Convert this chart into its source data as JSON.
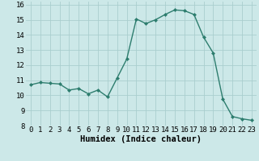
{
  "x": [
    0,
    1,
    2,
    3,
    4,
    5,
    6,
    7,
    8,
    9,
    10,
    11,
    12,
    13,
    14,
    15,
    16,
    17,
    18,
    19,
    20,
    21,
    22,
    23
  ],
  "y": [
    10.7,
    10.85,
    10.8,
    10.75,
    10.35,
    10.45,
    10.1,
    10.35,
    9.9,
    11.15,
    12.4,
    15.05,
    14.75,
    15.0,
    15.35,
    15.65,
    15.6,
    15.35,
    13.85,
    12.8,
    9.75,
    8.6,
    8.45,
    8.35
  ],
  "line_color": "#2d7d6e",
  "marker": "D",
  "marker_size": 2.0,
  "line_width": 1.0,
  "bg_color": "#cce8e8",
  "grid_color": "#aacece",
  "xlabel": "Humidex (Indice chaleur)",
  "xlabel_fontsize": 7.5,
  "tick_fontsize": 6.5,
  "xlim": [
    -0.5,
    23.5
  ],
  "ylim": [
    8,
    16.2
  ],
  "yticks": [
    8,
    9,
    10,
    11,
    12,
    13,
    14,
    15,
    16
  ],
  "xticks": [
    0,
    1,
    2,
    3,
    4,
    5,
    6,
    7,
    8,
    9,
    10,
    11,
    12,
    13,
    14,
    15,
    16,
    17,
    18,
    19,
    20,
    21,
    22,
    23
  ]
}
